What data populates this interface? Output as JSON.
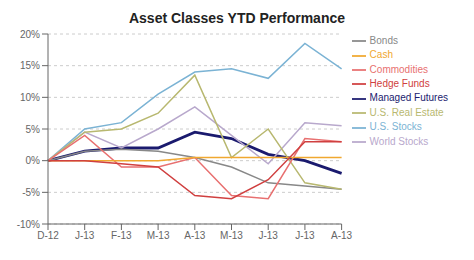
{
  "chart_data": {
    "type": "line",
    "title": "Asset Classes YTD Performance",
    "categories": [
      "D-12",
      "J-13",
      "F-13",
      "M-13",
      "A-13",
      "M-13",
      "J-13",
      "J-13",
      "A-13"
    ],
    "series": [
      {
        "name": "Managed Futures",
        "color": "#1a1a6e",
        "values": [
          0,
          1.5,
          2.0,
          2.0,
          4.5,
          3.5,
          1.0,
          0.0,
          -2.0
        ]
      },
      {
        "name": "U.S. Stocks",
        "color": "#7bb3d4",
        "values": [
          0,
          5.0,
          6.0,
          10.5,
          14.0,
          14.5,
          13.0,
          18.5,
          14.5
        ]
      },
      {
        "name": "World Stocks",
        "color": "#b8a8cc",
        "values": [
          0,
          4.5,
          2.0,
          5.0,
          8.5,
          4.0,
          -0.5,
          6.0,
          5.5
        ]
      },
      {
        "name": "Bonds",
        "color": "#888888",
        "values": [
          0,
          1.5,
          1.8,
          1.5,
          0.5,
          -1.0,
          -3.5,
          -4.0,
          -4.5
        ]
      },
      {
        "name": "U.S. Real Estate",
        "color": "#b8b870",
        "values": [
          0,
          4.5,
          5.0,
          7.5,
          13.5,
          0.5,
          5.0,
          -3.5,
          -4.5
        ]
      },
      {
        "name": "Commodities",
        "color": "#e87070",
        "values": [
          0,
          4.0,
          -1.0,
          -1.0,
          0.5,
          -5.5,
          -6.0,
          3.5,
          3.0
        ]
      },
      {
        "name": "Cash",
        "color": "#f0a830",
        "values": [
          0,
          0.0,
          0.0,
          0.0,
          0.5,
          0.5,
          0.5,
          0.5,
          0.5
        ]
      },
      {
        "name": "Hedge Funds",
        "color": "#d04040",
        "values": [
          0,
          0.0,
          -0.5,
          -1.0,
          -5.5,
          -6.0,
          -3.0,
          3.0,
          3.0
        ]
      }
    ],
    "ylim": [
      -10,
      20
    ],
    "yticks": [
      {
        "value": -10,
        "label": "-10%"
      },
      {
        "value": -5,
        "label": "-5%"
      },
      {
        "value": 0,
        "label": "0%"
      },
      {
        "value": 5,
        "label": "5%"
      },
      {
        "value": 10,
        "label": "10%"
      },
      {
        "value": 15,
        "label": "15%"
      },
      {
        "value": 20,
        "label": "20%"
      }
    ],
    "grid": true,
    "legend": "right"
  }
}
